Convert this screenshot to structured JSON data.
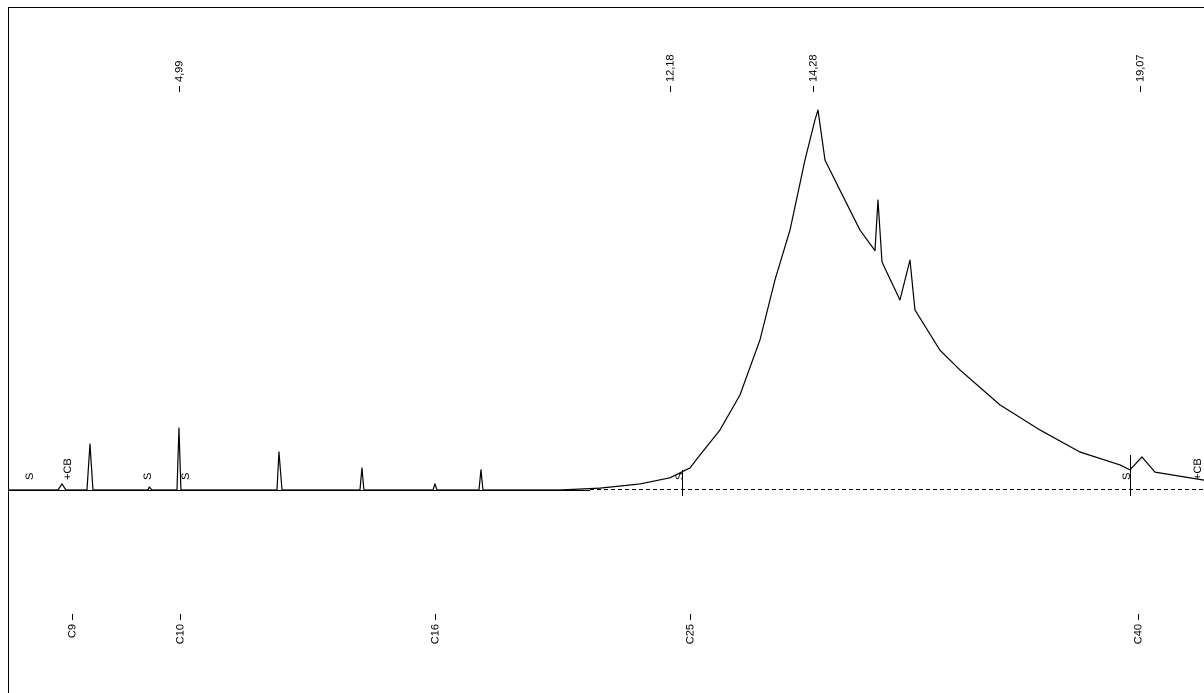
{
  "chart_data": {
    "type": "line",
    "x": [
      2.485,
      3.217,
      3.276,
      3.334,
      3.642,
      3.686,
      3.73,
      4.536,
      4.555,
      4.594,
      4.961,
      4.99,
      5.019,
      6.426,
      6.455,
      6.5,
      7.642,
      7.671,
      7.7,
      8.712,
      8.741,
      8.77,
      9.386,
      9.415,
      9.444,
      10.572,
      11.159,
      11.745,
      12.184,
      12.477,
      12.624,
      12.917,
      13.21,
      13.503,
      13.723,
      13.943,
      14.162,
      14.309,
      14.353,
      14.456,
      14.675,
      14.968,
      15.188,
      15.232,
      15.291,
      15.554,
      15.701,
      15.774,
      16.14,
      16.433,
      17.019,
      17.605,
      18.191,
      18.778,
      18.924,
      19.1,
      19.291,
      20.009
    ],
    "values": [
      0,
      0,
      1.6,
      0,
      0,
      12.1,
      0,
      0,
      0.8,
      0,
      0,
      16.3,
      0,
      0,
      10,
      0,
      0,
      5.8,
      0,
      0,
      1.6,
      0,
      0,
      5.3,
      0,
      0,
      0.5,
      1.6,
      3.2,
      5.8,
      9.2,
      15.8,
      25,
      39.5,
      55.3,
      68.4,
      86.8,
      97.4,
      100,
      86.8,
      78.9,
      68.4,
      63,
      76.3,
      60,
      50,
      60.5,
      47.4,
      36.8,
      31.6,
      22.4,
      15.8,
      10,
      6.6,
      5.3,
      8.7,
      4.7,
      2.6
    ],
    "color": "#000000",
    "xlim": [
      2.485,
      20.009
    ],
    "ylim": [
      0,
      100
    ],
    "xticks": [
      {
        "value": 4.99,
        "label": "4,99"
      },
      {
        "value": 12.18,
        "label": "12,18"
      },
      {
        "value": 14.28,
        "label": "14,28"
      },
      {
        "value": 19.07,
        "label": "19,07"
      }
    ],
    "markers": [
      {
        "value": 3.42,
        "label": "C9"
      },
      {
        "value": 5.0,
        "label": "C10"
      },
      {
        "value": 8.74,
        "label": "C16"
      },
      {
        "value": 12.48,
        "label": "C25"
      },
      {
        "value": 19.04,
        "label": "C40"
      }
    ],
    "annotations": [
      {
        "text": "S",
        "x": 2.807
      },
      {
        "text": "+CB",
        "x": 3.364
      },
      {
        "text": "S",
        "x": 4.536
      },
      {
        "text": "S",
        "x": 5.093
      },
      {
        "text": "S",
        "x": 12.33
      },
      {
        "text": "S",
        "x": 18.88
      },
      {
        "text": "+CB",
        "x": 19.92
      }
    ]
  }
}
